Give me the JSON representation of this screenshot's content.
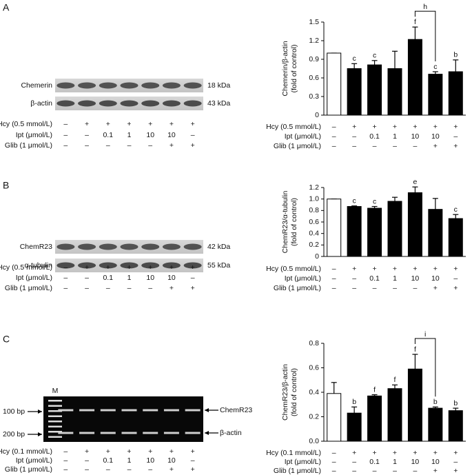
{
  "panels": [
    {
      "letter": "A",
      "blot": {
        "kind": "western",
        "rows": [
          {
            "name": "Chemerin",
            "size": "18 kDa"
          },
          {
            "name": "β-actin",
            "size": "43 kDa"
          }
        ]
      }
    },
    {
      "letter": "B",
      "blot": {
        "kind": "western",
        "rows": [
          {
            "name": "ChemR23",
            "size": "42 kDa"
          },
          {
            "name": "α-tubulin",
            "size": "55 kDa"
          }
        ]
      }
    },
    {
      "letter": "C",
      "blot": {
        "kind": "gel",
        "marker": "M",
        "rows": [
          {
            "name": "ChemR23",
            "size": "100 bp"
          },
          {
            "name": "β-actin",
            "size": "200 bp"
          }
        ]
      }
    }
  ],
  "chart_data": [
    {
      "type": "bar",
      "ylabel": [
        "Chemerin/β-actin",
        "(fold of control)"
      ],
      "condition_rows": [
        {
          "label": "Hcy (0.5 mmol/L)",
          "values": [
            "–",
            "+",
            "+",
            "+",
            "+",
            "+",
            "+"
          ]
        },
        {
          "label": "Ipt (μmol/L)",
          "values": [
            "–",
            "–",
            "0.1",
            "1",
            "10",
            "10",
            "–"
          ]
        },
        {
          "label": "Glib (1 μmol/L)",
          "values": [
            "–",
            "–",
            "–",
            "–",
            "–",
            "+",
            "+"
          ]
        }
      ],
      "values": [
        1.0,
        0.75,
        0.81,
        0.75,
        1.22,
        0.66,
        0.7
      ],
      "errors": [
        0,
        0.08,
        0.07,
        0.28,
        0.2,
        0.04,
        0.19
      ],
      "sig_labels": [
        null,
        "c",
        "c",
        null,
        "f",
        "c",
        "b"
      ],
      "colors": [
        "#ffffff",
        "#000000",
        "#000000",
        "#000000",
        "#000000",
        "#000000",
        "#000000"
      ],
      "bracket": {
        "from": 4,
        "to": 5,
        "label": "h"
      },
      "ylim": [
        0,
        1.5
      ],
      "yticks": [
        0,
        0.3,
        0.6,
        0.9,
        1.2,
        1.5
      ]
    },
    {
      "type": "bar",
      "ylabel": [
        "ChemR23/α-tubulin",
        "(fold of control)"
      ],
      "condition_rows": [
        {
          "label": "Hcy (0.5 mmol/L)",
          "values": [
            "–",
            "+",
            "+",
            "+",
            "+",
            "+",
            "+"
          ]
        },
        {
          "label": "Ipt (μmol/L)",
          "values": [
            "–",
            "–",
            "0.1",
            "1",
            "10",
            "10",
            "–"
          ]
        },
        {
          "label": "Glib (1 μmol/L)",
          "values": [
            "–",
            "–",
            "–",
            "–",
            "–",
            "+",
            "+"
          ]
        }
      ],
      "values": [
        1.0,
        0.87,
        0.84,
        0.96,
        1.11,
        0.82,
        0.66
      ],
      "errors": [
        0,
        0.01,
        0.03,
        0.07,
        0.1,
        0.19,
        0.07
      ],
      "sig_labels": [
        null,
        "c",
        "c",
        null,
        "e",
        null,
        "c"
      ],
      "colors": [
        "#ffffff",
        "#000000",
        "#000000",
        "#000000",
        "#000000",
        "#000000",
        "#000000"
      ],
      "ylim": [
        0,
        1.2
      ],
      "yticks": [
        0,
        0.2,
        0.4,
        0.6,
        0.8,
        {
          "value": 1,
          "label": "1.0"
        },
        1.2
      ]
    },
    {
      "type": "bar",
      "ylabel": [
        "ChemR23/β-actin",
        "(fold of control)"
      ],
      "condition_rows": [
        {
          "label": "Hcy (0.1 mmol/L)",
          "values": [
            "–",
            "+",
            "+",
            "+",
            "+",
            "+",
            "+"
          ]
        },
        {
          "label": "Ipt (μmol/L)",
          "values": [
            "–",
            "–",
            "0.1",
            "1",
            "10",
            "10",
            "–"
          ]
        },
        {
          "label": "Glib (1 μmol/L)",
          "values": [
            "–",
            "–",
            "–",
            "–",
            "–",
            "+",
            "+"
          ]
        }
      ],
      "values": [
        0.39,
        0.23,
        0.37,
        0.43,
        0.59,
        0.27,
        0.25
      ],
      "errors": [
        0.09,
        0.05,
        0.01,
        0.03,
        0.12,
        0.01,
        0.02
      ],
      "sig_labels": [
        null,
        "b",
        "f",
        "f",
        "f",
        "b",
        "b"
      ],
      "colors": [
        "#ffffff",
        "#000000",
        "#000000",
        "#000000",
        "#000000",
        "#000000",
        "#000000"
      ],
      "bracket": {
        "from": 4,
        "to": 5,
        "label": "i"
      },
      "ylim": [
        0,
        0.8
      ],
      "yticks": [
        {
          "value": 0,
          "label": "0.0"
        },
        0.2,
        0.4,
        0.6,
        0.8
      ]
    }
  ]
}
